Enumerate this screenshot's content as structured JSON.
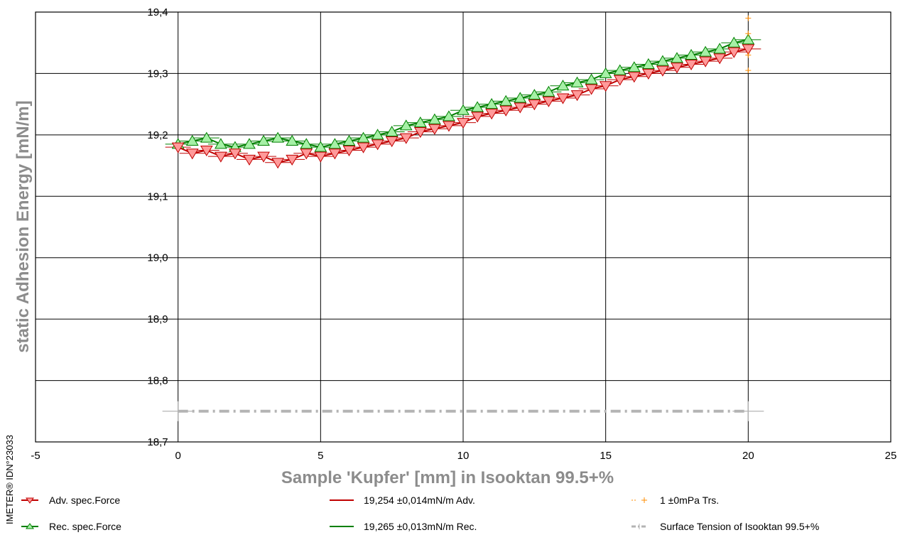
{
  "chart_data": {
    "type": "scatter",
    "xlabel": "Sample 'Kupfer' [mm] in Isooktan 99.5+%",
    "ylabel": "static Adhesion Energy [mN/m]",
    "side_label": "IMETER® IDN°23033",
    "xlim": [
      -5,
      25
    ],
    "ylim": [
      18.7,
      19.4
    ],
    "x_ticks": [
      "-5",
      "0",
      "5",
      "10",
      "15",
      "20",
      "25"
    ],
    "y_ticks": [
      "19,4",
      "19,3",
      "19,2",
      "19,1",
      "19,0",
      "18,9",
      "18,8",
      "18,7"
    ],
    "grid": true,
    "colors": {
      "adv": "#c00000",
      "adv_fill": "#ff9a9a",
      "rec": "#008000",
      "rec_fill": "#a6f0a6",
      "trs": "#ff8c00",
      "surface": "#b4b4b4"
    },
    "series": [
      {
        "name": "Adv. spec.Force",
        "marker": "triangle-down",
        "x": [
          0,
          0.5,
          1,
          1.5,
          2,
          2.5,
          3,
          3.5,
          4,
          4.5,
          5,
          5.5,
          6,
          6.5,
          7,
          7.5,
          8,
          8.5,
          9,
          9.5,
          10,
          10.5,
          11,
          11.5,
          12,
          12.5,
          13,
          13.5,
          14,
          14.5,
          15,
          15.5,
          16,
          16.5,
          17,
          17.5,
          18,
          18.5,
          19,
          19.5,
          20
        ],
        "y": [
          19.18,
          19.17,
          19.175,
          19.165,
          19.17,
          19.16,
          19.165,
          19.155,
          19.16,
          19.17,
          19.165,
          19.17,
          19.175,
          19.18,
          19.185,
          19.19,
          19.195,
          19.205,
          19.21,
          19.215,
          19.22,
          19.23,
          19.235,
          19.24,
          19.245,
          19.25,
          19.255,
          19.26,
          19.265,
          19.275,
          19.28,
          19.29,
          19.295,
          19.3,
          19.305,
          19.31,
          19.315,
          19.32,
          19.325,
          19.335,
          19.34
        ]
      },
      {
        "name": "Rec. spec.Force",
        "marker": "triangle-up",
        "x": [
          0,
          0.5,
          1,
          1.5,
          2,
          2.5,
          3,
          3.5,
          4,
          4.5,
          5,
          5.5,
          6,
          6.5,
          7,
          7.5,
          8,
          8.5,
          9,
          9.5,
          10,
          10.5,
          11,
          11.5,
          12,
          12.5,
          13,
          13.5,
          14,
          14.5,
          15,
          15.5,
          16,
          16.5,
          17,
          17.5,
          18,
          18.5,
          19,
          19.5,
          20
        ],
        "y": [
          19.185,
          19.19,
          19.195,
          19.185,
          19.18,
          19.185,
          19.19,
          19.195,
          19.19,
          19.185,
          19.18,
          19.185,
          19.19,
          19.195,
          19.2,
          19.205,
          19.215,
          19.22,
          19.225,
          19.23,
          19.24,
          19.245,
          19.25,
          19.255,
          19.26,
          19.265,
          19.27,
          19.28,
          19.285,
          19.29,
          19.3,
          19.305,
          19.31,
          19.315,
          19.32,
          19.325,
          19.33,
          19.335,
          19.34,
          19.35,
          19.355
        ]
      },
      {
        "name": "19,254 ±0,014mN/m Adv.",
        "marker": "line"
      },
      {
        "name": "19,265 ±0,013mN/m Rec.",
        "marker": "line"
      },
      {
        "name": "1 ±0mPa Trs.",
        "marker": "plus",
        "x": [
          20,
          20,
          20,
          20
        ],
        "y": [
          19.39,
          19.365,
          19.33,
          19.305
        ]
      },
      {
        "name": "Surface Tension of Isooktan 99.5+%",
        "marker": "dash-dot-plus",
        "x": [
          0,
          20
        ],
        "y": [
          18.75,
          18.75
        ]
      }
    ]
  }
}
